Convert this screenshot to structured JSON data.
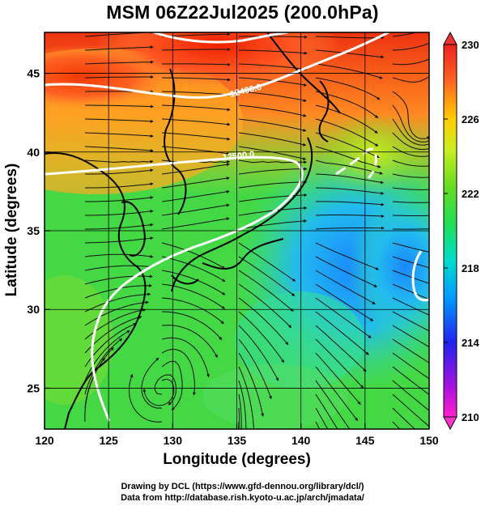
{
  "title": "MSM 06Z22Jul2025 (200.0hPa)",
  "axes": {
    "xlabel": "Longitude (degrees)",
    "ylabel": "Latitude  (degrees)",
    "xticks": [
      120,
      125,
      130,
      135,
      140,
      145,
      150
    ],
    "yticks": [
      25,
      30,
      35,
      40,
      45
    ],
    "xlim": [
      120,
      150
    ],
    "ylim": [
      22.4,
      47.6
    ]
  },
  "colorbar": {
    "ticks": [
      210,
      214,
      218,
      222,
      226,
      230
    ],
    "range": [
      210,
      230
    ]
  },
  "contour_labels": [
    "12400.0",
    "12500.0"
  ],
  "credits": {
    "line1": "Drawing by DCL (https://www.gfd-dennou.org/library/dcl/)",
    "line2": "Data from http://database.rish.kyoto-u.ac.jp/arch/jmadata/"
  }
}
